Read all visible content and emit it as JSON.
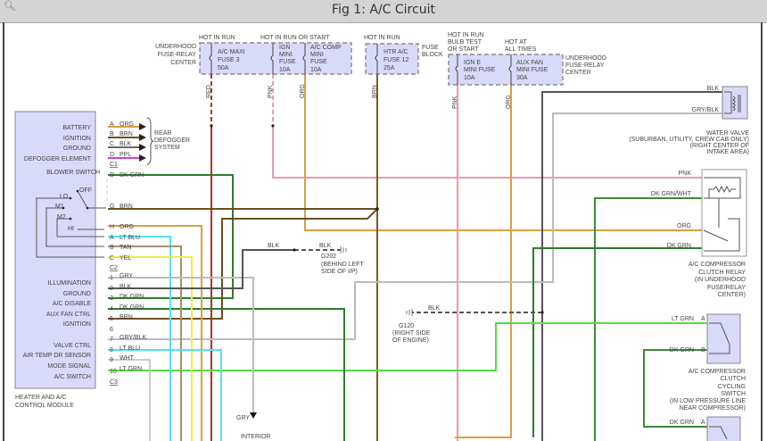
{
  "window": {
    "title": "Fig 1: A/C Circuit",
    "zoom_icon": "magnifier-icon"
  },
  "fuses": {
    "hot_run": "HOT IN RUN",
    "hot_run_start": "HOT IN RUN OR START",
    "hot_run2": "HOT IN RUN",
    "hot_bulb": [
      "HOT IN RUN",
      "BULB TEST",
      "OR START"
    ],
    "hot_always": [
      "HOT AT",
      "ALL TIMES"
    ],
    "underhood_left": [
      "UNDERHOOD",
      "FUSE-RELAY",
      "CENTER"
    ],
    "fuse_block": [
      "FUSE",
      "BLOCK"
    ],
    "underhood_right": [
      "UNDERHOOD",
      "FUSE-RELAY",
      "CENTER"
    ],
    "items": [
      {
        "lines": [
          "A/C MAXI",
          "FUSE 3",
          "50A"
        ]
      },
      {
        "lines": [
          "IGN",
          "MINI",
          "FUSE",
          "10A"
        ]
      },
      {
        "lines": [
          "A/C COMP",
          "MINI",
          "FUSE",
          "10A"
        ]
      },
      {
        "lines": [
          "HTR A/C",
          "FUSE 12",
          "25A"
        ]
      },
      {
        "lines": [
          "IGN E",
          "MINI FUSE",
          "10A"
        ]
      },
      {
        "lines": [
          "AUX FAN",
          "MINI FUSE",
          "30A"
        ]
      }
    ],
    "wire_colors": [
      "RED",
      "PNK",
      "ORG",
      "BRN",
      "PNK",
      "ORG"
    ]
  },
  "module": {
    "name": [
      "HEATER AND A/C",
      "CONTROL MODULE"
    ],
    "c1_pins": [
      {
        "fn": "BATTERY",
        "pin": "A",
        "color": "ORG"
      },
      {
        "fn": "IGNITION",
        "pin": "B",
        "color": "BRN"
      },
      {
        "fn": "GROUND",
        "pin": "C",
        "color": "BLK"
      },
      {
        "fn": "DEFOGGER ELEMENT",
        "pin": "D",
        "color": "PPL"
      }
    ],
    "c1": "C1",
    "blower": {
      "label": "BLOWER SWITCH",
      "off": "OFF",
      "lo": "LO",
      "m1": "M1",
      "m2": "M2",
      "hi": "HI"
    },
    "c2_pins": [
      {
        "pin": "D",
        "color": "DK GRN"
      },
      {
        "pin": "G",
        "color": "BRN"
      },
      {
        "pin": "H",
        "color": "ORG"
      },
      {
        "pin": "A",
        "color": "LT BLU"
      },
      {
        "pin": "B",
        "color": "TAN"
      },
      {
        "pin": "C",
        "color": "YEL"
      }
    ],
    "c2": "C2",
    "c3_pins": [
      {
        "fn": "ILLUMINATION",
        "pin": "1",
        "color": "GRY"
      },
      {
        "fn": "GROUND",
        "pin": "2",
        "color": "BLK"
      },
      {
        "fn": "A/C DISABLE",
        "pin": "3",
        "color": "DK GRN"
      },
      {
        "fn": "AUX FAN CTRL",
        "pin": "4",
        "color": "DK GRN"
      },
      {
        "fn": "IGNITION",
        "pin": "5",
        "color": "BRN"
      },
      {
        "fn": "",
        "pin": "6",
        "color": ""
      },
      {
        "fn": "VALVE CTRL",
        "pin": "7",
        "color": "GRY/BLK"
      },
      {
        "fn": "AIR TEMP DR SENSOR",
        "pin": "8",
        "color": "LT BLU"
      },
      {
        "fn": "MODE SIGNAL",
        "pin": "9",
        "color": "WHT"
      },
      {
        "fn": "A/C SWITCH",
        "pin": "10",
        "color": "LT GRN"
      }
    ],
    "c3": "C3"
  },
  "rear_defogger": [
    "REAR",
    "DEFOGGER",
    "SYSTEM"
  ],
  "grounds": {
    "g202": {
      "wire1": "BLK",
      "wire2": "BLK",
      "name": "G202",
      "loc": [
        "(BEHIND LEFT",
        "SIDE OF I/P)"
      ]
    },
    "g120": {
      "wire": "BLK",
      "name": "G120",
      "loc": [
        "(RIGHT SIDE",
        "OF ENGINE)"
      ]
    },
    "interior": {
      "wire": "GRY",
      "name": "INTERIOR"
    }
  },
  "water_valve": {
    "wires": [
      "BLK",
      "GRY/BLK"
    ],
    "caption": [
      "WATER VALVE",
      "(SUBURBAN, UTILITY, CREW CAB ONLY)",
      "(RIGHT CENTER OF",
      "INTAKE AREA)"
    ]
  },
  "relay": {
    "wires": [
      "PNK",
      "DK GRN/WHT",
      "ORG",
      "DK GRN"
    ],
    "caption": [
      "A/C COMPRESSOR",
      "CLUTCH RELAY",
      "(IN UNDERHOOD",
      "FUSE/RELAY",
      "CENTER)"
    ]
  },
  "cycling_switch": {
    "wires": [
      {
        "color": "LT GRN",
        "pin": "A"
      },
      {
        "color": "DK GRN",
        "pin": "B"
      }
    ],
    "caption": [
      "A/C COMPRESSOR",
      "CLUTCH",
      "CYCLING",
      "SWITCH",
      "(IN LOW PRESSURE LINE",
      "NEAR COMPRESSOR)"
    ]
  },
  "bottom_switch": {
    "color": "DK GRN",
    "pin": "A"
  },
  "colors": {
    "module_fill": "#d9d9fa",
    "red": "#b03030",
    "pink": "#e89aaa",
    "orange": "#d9a040",
    "brown": "#6b5020",
    "black": "#555555",
    "gray": "#bbbbbb",
    "dk_green": "#2f7a2f",
    "lt_green": "#55dd44",
    "lt_blue": "#55e0f0",
    "tan": "#a89070",
    "yellow": "#eeee44",
    "purple": "#cc44cc"
  }
}
